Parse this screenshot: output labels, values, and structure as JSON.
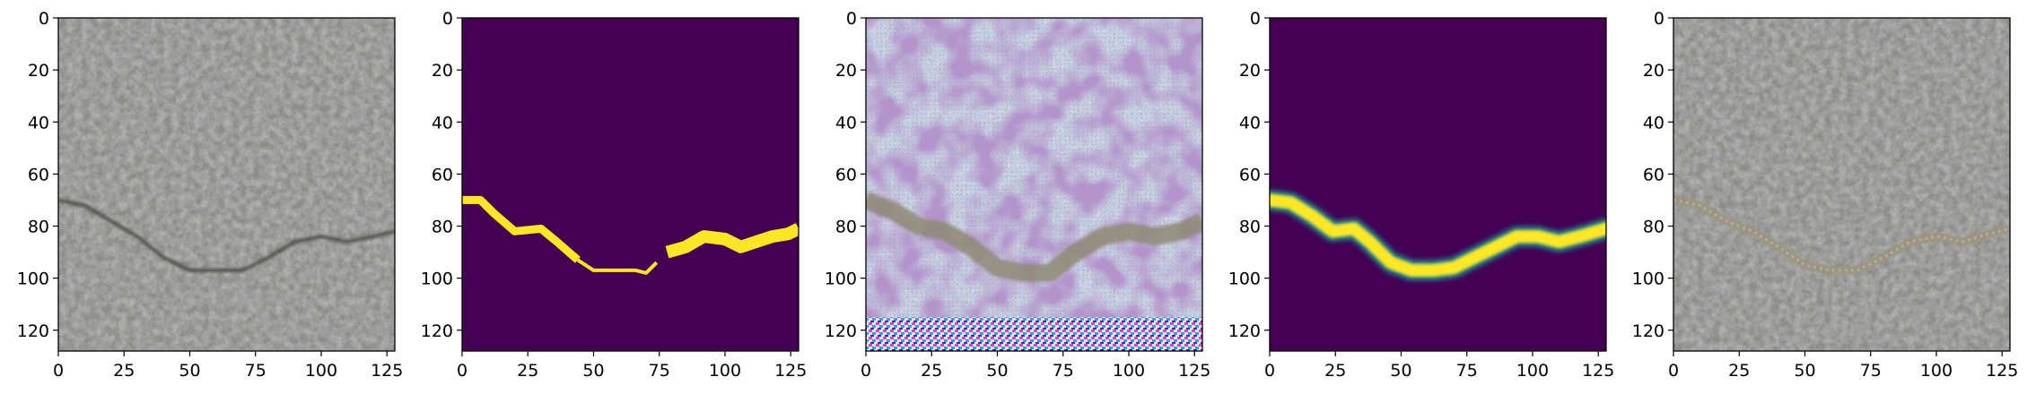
{
  "chart_data": [
    {
      "type": "image",
      "content": "concrete surface photo with a crack",
      "xlim": [
        0,
        128
      ],
      "ylim": [
        128,
        0
      ],
      "xticks": [
        0,
        25,
        50,
        75,
        100,
        125
      ],
      "yticks": [
        0,
        20,
        40,
        60,
        80,
        100,
        120
      ],
      "crack_path": [
        [
          0,
          70
        ],
        [
          10,
          72
        ],
        [
          20,
          78
        ],
        [
          30,
          84
        ],
        [
          40,
          92
        ],
        [
          50,
          97
        ],
        [
          60,
          97
        ],
        [
          70,
          97
        ],
        [
          80,
          92
        ],
        [
          90,
          86
        ],
        [
          100,
          84
        ],
        [
          110,
          86
        ],
        [
          120,
          84
        ],
        [
          128,
          82
        ]
      ]
    },
    {
      "type": "heatmap",
      "content": "binary crack mask",
      "colormap": "viridis",
      "colors": {
        "background": "#440154",
        "foreground": "#fde725"
      },
      "xlim": [
        0,
        128
      ],
      "ylim": [
        128,
        0
      ],
      "xticks": [
        0,
        25,
        50,
        75,
        100,
        125
      ],
      "yticks": [
        0,
        20,
        40,
        60,
        80,
        100,
        120
      ],
      "crack_path": [
        [
          0,
          70
        ],
        [
          7,
          70
        ],
        [
          12,
          75
        ],
        [
          20,
          82
        ],
        [
          30,
          81
        ],
        [
          36,
          86
        ],
        [
          44,
          93
        ],
        [
          50,
          97
        ],
        [
          60,
          97
        ],
        [
          66,
          97
        ],
        [
          70,
          98
        ],
        [
          74,
          94
        ],
        [
          78,
          90
        ],
        [
          85,
          88
        ],
        [
          92,
          84
        ],
        [
          100,
          85
        ],
        [
          106,
          88
        ],
        [
          112,
          86
        ],
        [
          118,
          84
        ],
        [
          124,
          83
        ],
        [
          128,
          81
        ]
      ]
    },
    {
      "type": "image",
      "content": "generated noisy texture with a crack",
      "xlim": [
        0,
        128
      ],
      "ylim": [
        128,
        0
      ],
      "xticks": [
        0,
        25,
        50,
        75,
        100,
        125
      ],
      "yticks": [
        0,
        20,
        40,
        60,
        80,
        100,
        120
      ],
      "crack_path": [
        [
          0,
          70
        ],
        [
          10,
          74
        ],
        [
          20,
          80
        ],
        [
          30,
          82
        ],
        [
          40,
          88
        ],
        [
          50,
          96
        ],
        [
          60,
          98
        ],
        [
          70,
          98
        ],
        [
          80,
          90
        ],
        [
          90,
          84
        ],
        [
          100,
          82
        ],
        [
          110,
          84
        ],
        [
          120,
          82
        ],
        [
          128,
          78
        ]
      ]
    },
    {
      "type": "heatmap",
      "content": "predicted crack probability map",
      "colormap": "viridis",
      "colors": {
        "background": "#440154",
        "foreground": "#fde725"
      },
      "xlim": [
        0,
        128
      ],
      "ylim": [
        128,
        0
      ],
      "xticks": [
        0,
        25,
        50,
        75,
        100,
        125
      ],
      "yticks": [
        0,
        20,
        40,
        60,
        80,
        100,
        120
      ],
      "crack_path": [
        [
          0,
          70
        ],
        [
          8,
          71
        ],
        [
          16,
          76
        ],
        [
          24,
          82
        ],
        [
          32,
          81
        ],
        [
          38,
          86
        ],
        [
          46,
          94
        ],
        [
          54,
          97
        ],
        [
          62,
          97
        ],
        [
          70,
          96
        ],
        [
          78,
          92
        ],
        [
          86,
          88
        ],
        [
          94,
          84
        ],
        [
          102,
          84
        ],
        [
          110,
          86
        ],
        [
          118,
          84
        ],
        [
          128,
          81
        ]
      ]
    },
    {
      "type": "image",
      "content": "concrete photo with blended crack overlay",
      "xlim": [
        0,
        128
      ],
      "ylim": [
        128,
        0
      ],
      "xticks": [
        0,
        25,
        50,
        75,
        100,
        125
      ],
      "yticks": [
        0,
        20,
        40,
        60,
        80,
        100,
        120
      ],
      "crack_path": [
        [
          0,
          70
        ],
        [
          10,
          72
        ],
        [
          20,
          78
        ],
        [
          30,
          82
        ],
        [
          40,
          88
        ],
        [
          50,
          95
        ],
        [
          60,
          97
        ],
        [
          70,
          97
        ],
        [
          80,
          92
        ],
        [
          90,
          86
        ],
        [
          100,
          84
        ],
        [
          110,
          86
        ],
        [
          120,
          83
        ],
        [
          128,
          81
        ]
      ]
    }
  ]
}
